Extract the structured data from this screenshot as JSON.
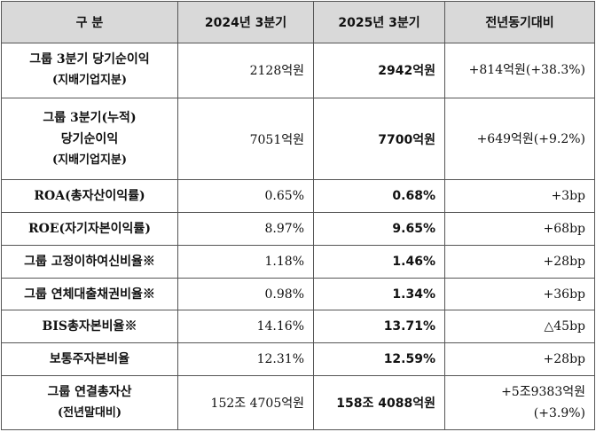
{
  "headers": [
    "구 분",
    "2024년 3분기",
    "2025년 3분기",
    "전년동기대비"
  ],
  "rows": [
    {
      "label": [
        "그룹 3분기 당기순이익",
        "(지배기업지분)"
      ],
      "v2024": "2128억원",
      "v2025": "2942억원",
      "change": [
        "+814억원(+38.3%)"
      ]
    },
    {
      "label": [
        "그룹 3분기(누적)",
        "당기순이익",
        "(지배기업지분)"
      ],
      "v2024": "7051억원",
      "v2025": "7700억원",
      "change": [
        "+649억원(+9.2%)"
      ]
    },
    {
      "label": [
        "ROA(총자산이익률)"
      ],
      "v2024": "0.65%",
      "v2025": "0.68%",
      "change": [
        "+3bp"
      ]
    },
    {
      "label": [
        "ROE(자기자본이익률)"
      ],
      "v2024": "8.97%",
      "v2025": "9.65%",
      "change": [
        "+68bp"
      ]
    },
    {
      "label": [
        "그룹 고정이하여신비율※"
      ],
      "v2024": "1.18%",
      "v2025": "1.46%",
      "change": [
        "+28bp"
      ]
    },
    {
      "label": [
        "그룹 연체대출채권비율※"
      ],
      "v2024": "0.98%",
      "v2025": "1.34%",
      "change": [
        "+36bp"
      ]
    },
    {
      "label": [
        "BIS총자본비율※"
      ],
      "v2024": "14.16%",
      "v2025": "13.71%",
      "change": [
        "△45bp"
      ]
    },
    {
      "label": [
        "보통주자본비율"
      ],
      "v2024": "12.31%",
      "v2025": "12.59%",
      "change": [
        "+28bp"
      ]
    },
    {
      "label": [
        "그룹 연결총자산",
        "(전년말대비)"
      ],
      "v2024": "152조 4705억원",
      "v2025": "158조 4088억원",
      "change": [
        "+5조9383억원",
        "(+3.9%)"
      ]
    }
  ]
}
